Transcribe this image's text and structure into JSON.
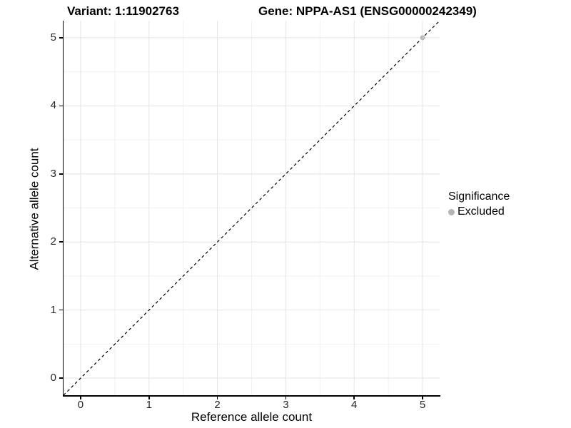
{
  "titles": {
    "variant": "Variant: 1:11902763",
    "gene": "Gene: NPPA-AS1 (ENSG00000242349)"
  },
  "chart_data": {
    "type": "scatter",
    "title_left": "Variant: 1:11902763",
    "title_right": "Gene: NPPA-AS1 (ENSG00000242349)",
    "xlabel": "Reference allele count",
    "ylabel": "Alternative allele count",
    "xlim": [
      -0.25,
      5.25
    ],
    "ylim": [
      -0.25,
      5.25
    ],
    "xticks": [
      0,
      1,
      2,
      3,
      4,
      5
    ],
    "yticks": [
      0,
      1,
      2,
      3,
      4,
      5
    ],
    "grid": "major-and-minor",
    "identity_line": {
      "slope": 1,
      "intercept": 0,
      "style": "dashed",
      "color": "#000000"
    },
    "series": [
      {
        "name": "Excluded",
        "color": "#bdbdbd",
        "points": [
          [
            5,
            5
          ]
        ]
      }
    ],
    "legend": {
      "title": "Significance",
      "position": "right",
      "entries": [
        {
          "label": "Excluded",
          "color": "#b5b5b5"
        }
      ]
    }
  },
  "colors": {
    "background": "#ffffff",
    "axis_line": "#000000",
    "tick_mark": "#000000",
    "tick_label": "#262626",
    "grid_major": "#e4e4e4",
    "grid_minor": "#f1f1f1",
    "point": "#bdbdbd",
    "title_text": "#000000"
  }
}
